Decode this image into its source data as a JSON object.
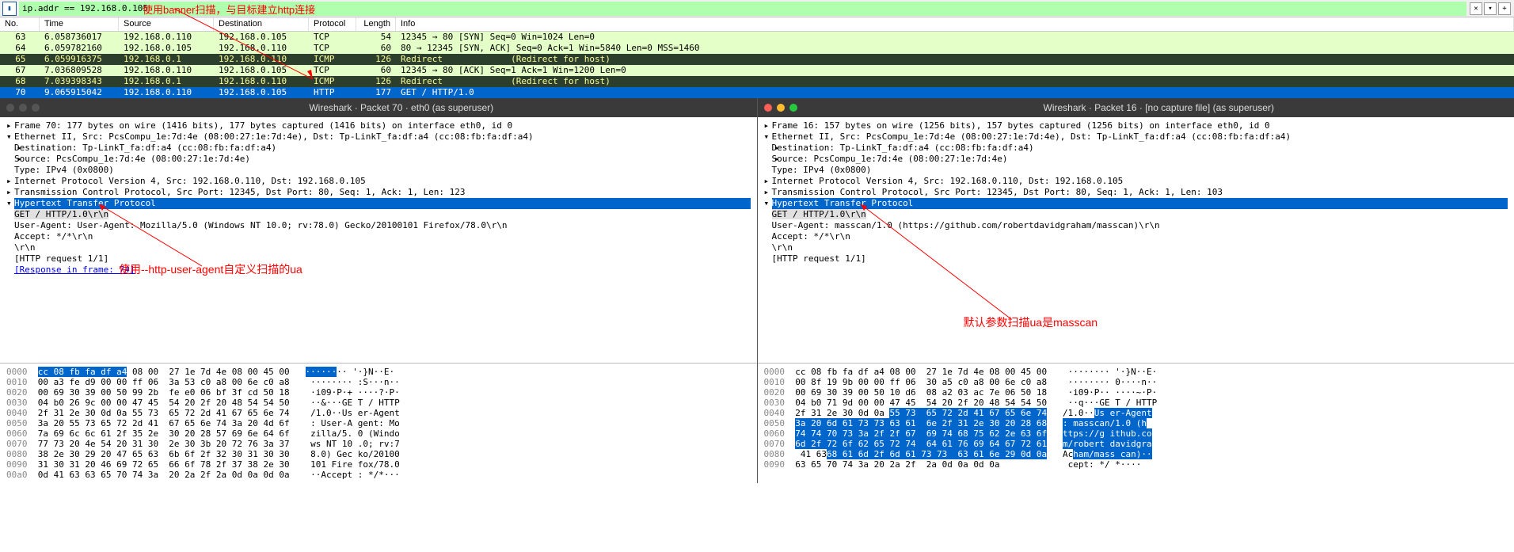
{
  "filter": {
    "value": "ip.addr == 192.168.0.105",
    "annotation": "使用banner扫描，与目标建立http连接",
    "clear_label": "✕",
    "dropdown_label": "▾",
    "plus_label": "+"
  },
  "columns": {
    "no": "No.",
    "time": "Time",
    "source": "Source",
    "destination": "Destination",
    "protocol": "Protocol",
    "length": "Length",
    "info": "Info"
  },
  "packets": [
    {
      "no": "63",
      "time": "6.058736017",
      "src": "192.168.0.110",
      "dst": "192.168.0.105",
      "proto": "TCP",
      "len": "54",
      "info": "12345 → 80 [SYN] Seq=0 Win=1024 Len=0",
      "cls": "green"
    },
    {
      "no": "64",
      "time": "6.059782160",
      "src": "192.168.0.105",
      "dst": "192.168.0.110",
      "proto": "TCP",
      "len": "60",
      "info": "80 → 12345 [SYN, ACK] Seq=0 Ack=1 Win=5840 Len=0 MSS=1460",
      "cls": "green"
    },
    {
      "no": "65",
      "time": "6.059916375",
      "src": "192.168.0.1",
      "dst": "192.168.0.110",
      "proto": "ICMP",
      "len": "126",
      "info": "Redirect             (Redirect for host)",
      "cls": "dark"
    },
    {
      "no": "67",
      "time": "7.036809528",
      "src": "192.168.0.110",
      "dst": "192.168.0.105",
      "proto": "TCP",
      "len": "60",
      "info": "12345 → 80 [ACK] Seq=1 Ack=1 Win=1200 Len=0",
      "cls": "green"
    },
    {
      "no": "68",
      "time": "7.039398343",
      "src": "192.168.0.1",
      "dst": "192.168.0.110",
      "proto": "ICMP",
      "len": "126",
      "info": "Redirect             (Redirect for host)",
      "cls": "dark"
    },
    {
      "no": "70",
      "time": "9.065915042",
      "src": "192.168.0.110",
      "dst": "192.168.0.105",
      "proto": "HTTP",
      "len": "177",
      "info": "GET / HTTP/1.0",
      "cls": "sel"
    }
  ],
  "left": {
    "title": "Wireshark · Packet 70 · eth0 (as superuser)",
    "lines": [
      {
        "pre": "▸ ",
        "txt": "Frame 70: 177 bytes on wire (1416 bits), 177 bytes captured (1416 bits) on interface eth0, id 0"
      },
      {
        "pre": "▾ ",
        "txt": "Ethernet II, Src: PcsCompu_1e:7d:4e (08:00:27:1e:7d:4e), Dst: Tp-LinkT_fa:df:a4 (cc:08:fb:fa:df:a4)"
      },
      {
        "pre": "  ▸ ",
        "txt": "Destination: Tp-LinkT_fa:df:a4 (cc:08:fb:fa:df:a4)"
      },
      {
        "pre": "  ▸ ",
        "txt": "Source: PcsCompu_1e:7d:4e (08:00:27:1e:7d:4e)"
      },
      {
        "pre": "    ",
        "txt": "Type: IPv4 (0x0800)"
      },
      {
        "pre": "▸ ",
        "txt": "Internet Protocol Version 4, Src: 192.168.0.110, Dst: 192.168.0.105"
      },
      {
        "pre": "▸ ",
        "txt": "Transmission Control Protocol, Src Port: 12345, Dst Port: 80, Seq: 1, Ack: 1, Len: 123"
      },
      {
        "pre": "▾ ",
        "txt": "Hypertext Transfer Protocol",
        "hdrsel": true
      },
      {
        "pre": "  ▸ ",
        "txt": "GET / HTTP/1.0\\r\\n",
        "subsel": true
      },
      {
        "pre": "    ",
        "txt": "User-Agent: User-Agent: Mozilla/5.0 (Windows NT 10.0; rv:78.0) Gecko/20100101 Firefox/78.0\\r\\n"
      },
      {
        "pre": "    ",
        "txt": "Accept: */*\\r\\n"
      },
      {
        "pre": "    ",
        "txt": "\\r\\n"
      },
      {
        "pre": "    ",
        "txt": "[HTTP request 1/1]"
      },
      {
        "pre": "    ",
        "txt": "[Response in frame: 74]",
        "link": true
      }
    ],
    "annotation": "使用--http-user-agent自定义扫描的ua",
    "hex": [
      {
        "off": "0000",
        "b": "cc 08 fb fa df a4 08 00  27 1e 7d 4e 08 00 45 00",
        "a": "········ '·}N··E·",
        "sel": [
          0,
          17
        ]
      },
      {
        "off": "0010",
        "b": "00 a3 fe d9 00 00 ff 06  3a 53 c0 a8 00 6e c0 a8",
        "a": "········ :S···n··"
      },
      {
        "off": "0020",
        "b": "00 69 30 39 00 50 99 2b  fe e0 06 bf 3f cd 50 18",
        "a": "·i09·P·+ ····?·P·"
      },
      {
        "off": "0030",
        "b": "04 b0 26 9c 00 00 47 45  54 20 2f 20 48 54 54 50",
        "a": "··&···GE T / HTTP"
      },
      {
        "off": "0040",
        "b": "2f 31 2e 30 0d 0a 55 73  65 72 2d 41 67 65 6e 74",
        "a": "/1.0··Us er-Agent"
      },
      {
        "off": "0050",
        "b": "3a 20 55 73 65 72 2d 41  67 65 6e 74 3a 20 4d 6f",
        "a": ": User-A gent: Mo"
      },
      {
        "off": "0060",
        "b": "7a 69 6c 6c 61 2f 35 2e  30 20 28 57 69 6e 64 6f",
        "a": "zilla/5. 0 (Windo"
      },
      {
        "off": "0070",
        "b": "77 73 20 4e 54 20 31 30  2e 30 3b 20 72 76 3a 37",
        "a": "ws NT 10 .0; rv:7"
      },
      {
        "off": "0080",
        "b": "38 2e 30 29 20 47 65 63  6b 6f 2f 32 30 31 30 30",
        "a": "8.0) Gec ko/20100"
      },
      {
        "off": "0090",
        "b": "31 30 31 20 46 69 72 65  66 6f 78 2f 37 38 2e 30",
        "a": "101 Fire fox/78.0"
      },
      {
        "off": "00a0",
        "b": "0d 41 63 63 65 70 74 3a  20 2a 2f 2a 0d 0a 0d 0a",
        "a": "··Accept : */*···"
      }
    ]
  },
  "right": {
    "title": "Wireshark · Packet 16 · [no capture file] (as superuser)",
    "lines": [
      {
        "pre": "▸ ",
        "txt": "Frame 16: 157 bytes on wire (1256 bits), 157 bytes captured (1256 bits) on interface eth0, id 0"
      },
      {
        "pre": "▾ ",
        "txt": "Ethernet II, Src: PcsCompu_1e:7d:4e (08:00:27:1e:7d:4e), Dst: Tp-LinkT_fa:df:a4 (cc:08:fb:fa:df:a4)"
      },
      {
        "pre": "  ▸ ",
        "txt": "Destination: Tp-LinkT_fa:df:a4 (cc:08:fb:fa:df:a4)"
      },
      {
        "pre": "  ▸ ",
        "txt": "Source: PcsCompu_1e:7d:4e (08:00:27:1e:7d:4e)"
      },
      {
        "pre": "    ",
        "txt": "Type: IPv4 (0x0800)"
      },
      {
        "pre": "▸ ",
        "txt": "Internet Protocol Version 4, Src: 192.168.0.110, Dst: 192.168.0.105"
      },
      {
        "pre": "▸ ",
        "txt": "Transmission Control Protocol, Src Port: 12345, Dst Port: 80, Seq: 1, Ack: 1, Len: 103"
      },
      {
        "pre": "▾ ",
        "txt": "Hypertext Transfer Protocol",
        "hdrsel": true
      },
      {
        "pre": "  ▸ ",
        "txt": "GET / HTTP/1.0\\r\\n",
        "subsel": true
      },
      {
        "pre": "    ",
        "txt": "User-Agent: masscan/1.0 (https://github.com/robertdavidgraham/masscan)\\r\\n"
      },
      {
        "pre": "    ",
        "txt": "Accept: */*\\r\\n"
      },
      {
        "pre": "    ",
        "txt": "\\r\\n"
      },
      {
        "pre": "    ",
        "txt": "[HTTP request 1/1]"
      }
    ],
    "annotation": "默认参数扫描ua是masscan",
    "hex": [
      {
        "off": "0000",
        "b": "cc 08 fb fa df a4 08 00  27 1e 7d 4e 08 00 45 00",
        "a": "········ '·}N··E·"
      },
      {
        "off": "0010",
        "b": "00 8f 19 9b 00 00 ff 06  30 a5 c0 a8 00 6e c0 a8",
        "a": "········ 0····n··"
      },
      {
        "off": "0020",
        "b": "00 69 30 39 00 50 10 d6  08 a2 03 ac 7e 06 50 18",
        "a": "·i09·P·· ····~·P·"
      },
      {
        "off": "0030",
        "b": "04 b0 71 9d 00 00 47 45  54 20 2f 20 48 54 54 50",
        "a": "··q···GE T / HTTP"
      },
      {
        "off": "0040",
        "b": "2f 31 2e 30 0d 0a ",
        "b2": "55 73  65 72 2d 41 67 65 6e 74",
        "a": "/1.0··",
        "a2": "Us er-Agent"
      },
      {
        "off": "0050",
        "b2": "3a 20 6d 61 73 73 63 61  6e 2f 31 2e 30 20 28 68",
        "a2": ": masscan/1.0 (h"
      },
      {
        "off": "0060",
        "b2": "74 74 70 73 3a 2f 2f 67  69 74 68 75 62 2e 63 6f",
        "a2": "ttps://g ithub.co"
      },
      {
        "off": "0070",
        "b2": "6d 2f 72 6f 62 65 72 74  64 61 76 69 64 67 72 61",
        "a2": "m/robert davidgra"
      },
      {
        "off": "0080",
        "b2": "68 61 6d 2f 6d 61 73 73  63 61 6e 29 0d 0a",
        "b": " 41 63",
        "a2": "ham/mass can)··",
        "a": "Ac"
      },
      {
        "off": "0090",
        "b": "63 65 70 74 3a 20 2a 2f  2a 0d 0a 0d 0a",
        "a": "cept: */ *····"
      }
    ]
  },
  "colors": {
    "filter_ok": "#afffaf",
    "row_green": "#e4ffc7",
    "row_dark_bg": "#2c3e2c",
    "row_dark_fg": "#fcfd9c",
    "selection": "#0066cc",
    "annotation": "#ff0000"
  }
}
